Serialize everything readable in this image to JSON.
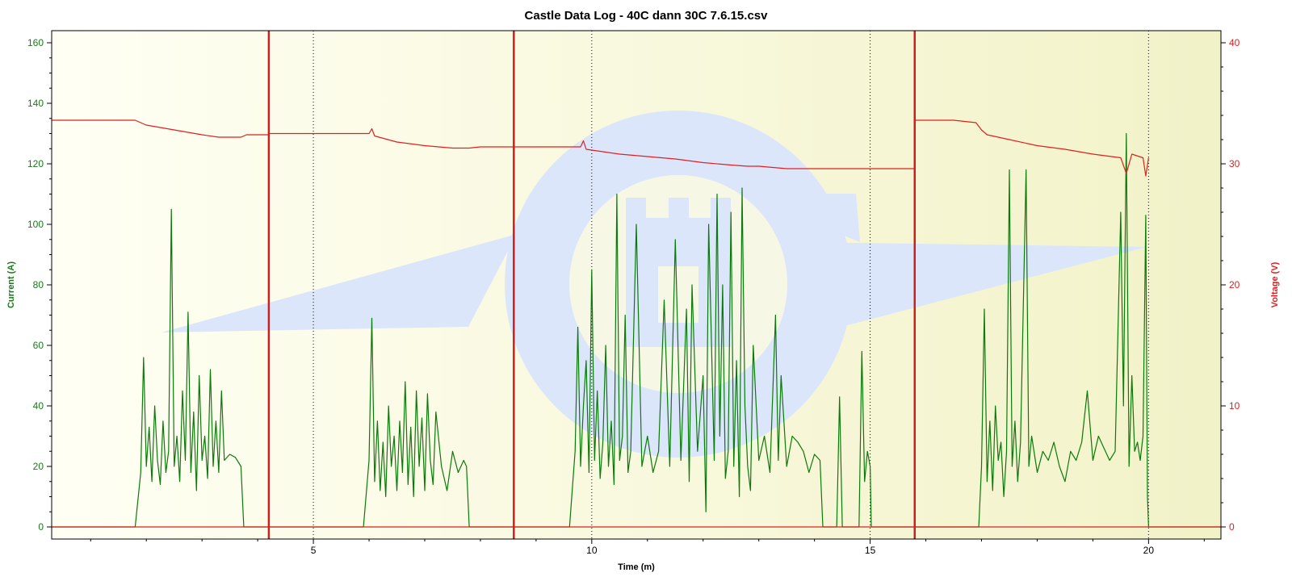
{
  "chart_data": {
    "type": "line",
    "title": "Castle Data Log - 40C dann 30C 7.6.15.csv",
    "xlabel": "Time (m)",
    "ylabel_left": "Current (A)",
    "ylabel_right": "Voltage (V)",
    "xlim": [
      0.3,
      21.3
    ],
    "ylim_left": [
      -4,
      164
    ],
    "ylim_right": [
      -1,
      41
    ],
    "x_ticks": [
      5,
      10,
      15,
      20
    ],
    "y_ticks_left": [
      0,
      20,
      40,
      60,
      80,
      100,
      120,
      140,
      160
    ],
    "y_ticks_right": [
      0,
      10,
      20,
      30,
      40
    ],
    "grid": "vertical dotted at major x ticks",
    "colors": {
      "current": "#0a7a0a",
      "voltage": "#e02020",
      "marker": "#cc2020",
      "background_left": "#fffff0",
      "background_right": "#f4f4c8",
      "watermark": "#dce6fa"
    },
    "markers_x": [
      4.2,
      8.6,
      15.8
    ],
    "series": [
      {
        "name": "Current (A)",
        "axis": "left",
        "color": "#0a7a0a",
        "points": [
          [
            0.3,
            0
          ],
          [
            1.8,
            0
          ],
          [
            1.9,
            18
          ],
          [
            1.95,
            56
          ],
          [
            2.0,
            20
          ],
          [
            2.05,
            33
          ],
          [
            2.1,
            15
          ],
          [
            2.15,
            40
          ],
          [
            2.2,
            22
          ],
          [
            2.25,
            14
          ],
          [
            2.3,
            35
          ],
          [
            2.35,
            18
          ],
          [
            2.4,
            25
          ],
          [
            2.45,
            105
          ],
          [
            2.5,
            20
          ],
          [
            2.55,
            30
          ],
          [
            2.6,
            15
          ],
          [
            2.65,
            45
          ],
          [
            2.7,
            22
          ],
          [
            2.75,
            71
          ],
          [
            2.8,
            18
          ],
          [
            2.85,
            38
          ],
          [
            2.9,
            12
          ],
          [
            2.95,
            50
          ],
          [
            3.0,
            22
          ],
          [
            3.05,
            30
          ],
          [
            3.1,
            16
          ],
          [
            3.15,
            52
          ],
          [
            3.2,
            20
          ],
          [
            3.25,
            35
          ],
          [
            3.3,
            18
          ],
          [
            3.35,
            45
          ],
          [
            3.4,
            22
          ],
          [
            3.5,
            24
          ],
          [
            3.6,
            23
          ],
          [
            3.7,
            20
          ],
          [
            3.75,
            0
          ],
          [
            5.9,
            0
          ],
          [
            6.0,
            22
          ],
          [
            6.05,
            69
          ],
          [
            6.1,
            15
          ],
          [
            6.15,
            35
          ],
          [
            6.2,
            12
          ],
          [
            6.25,
            28
          ],
          [
            6.3,
            10
          ],
          [
            6.35,
            40
          ],
          [
            6.4,
            20
          ],
          [
            6.45,
            30
          ],
          [
            6.5,
            12
          ],
          [
            6.55,
            35
          ],
          [
            6.6,
            18
          ],
          [
            6.65,
            48
          ],
          [
            6.7,
            14
          ],
          [
            6.75,
            33
          ],
          [
            6.8,
            10
          ],
          [
            6.85,
            45
          ],
          [
            6.9,
            20
          ],
          [
            6.95,
            36
          ],
          [
            7.0,
            12
          ],
          [
            7.05,
            44
          ],
          [
            7.1,
            22
          ],
          [
            7.15,
            14
          ],
          [
            7.2,
            38
          ],
          [
            7.3,
            20
          ],
          [
            7.4,
            12
          ],
          [
            7.5,
            25
          ],
          [
            7.6,
            18
          ],
          [
            7.7,
            22
          ],
          [
            7.75,
            20
          ],
          [
            7.8,
            0
          ],
          [
            9.6,
            0
          ],
          [
            9.7,
            25
          ],
          [
            9.75,
            66
          ],
          [
            9.8,
            20
          ],
          [
            9.85,
            40
          ],
          [
            9.9,
            55
          ],
          [
            9.95,
            18
          ],
          [
            10.0,
            85
          ],
          [
            10.05,
            22
          ],
          [
            10.1,
            45
          ],
          [
            10.15,
            16
          ],
          [
            10.2,
            28
          ],
          [
            10.25,
            60
          ],
          [
            10.3,
            20
          ],
          [
            10.35,
            35
          ],
          [
            10.4,
            14
          ],
          [
            10.45,
            110
          ],
          [
            10.5,
            22
          ],
          [
            10.55,
            30
          ],
          [
            10.6,
            70
          ],
          [
            10.65,
            18
          ],
          [
            10.7,
            25
          ],
          [
            10.8,
            100
          ],
          [
            10.9,
            20
          ],
          [
            11.0,
            30
          ],
          [
            11.1,
            18
          ],
          [
            11.2,
            25
          ],
          [
            11.3,
            75
          ],
          [
            11.4,
            20
          ],
          [
            11.5,
            95
          ],
          [
            11.6,
            22
          ],
          [
            11.7,
            72
          ],
          [
            11.75,
            15
          ],
          [
            11.8,
            80
          ],
          [
            11.9,
            25
          ],
          [
            12.0,
            50
          ],
          [
            12.05,
            5
          ],
          [
            12.1,
            100
          ],
          [
            12.2,
            22
          ],
          [
            12.25,
            110
          ],
          [
            12.3,
            30
          ],
          [
            12.35,
            80
          ],
          [
            12.4,
            16
          ],
          [
            12.45,
            25
          ],
          [
            12.5,
            104
          ],
          [
            12.55,
            20
          ],
          [
            12.6,
            55
          ],
          [
            12.65,
            10
          ],
          [
            12.7,
            112
          ],
          [
            12.75,
            40
          ],
          [
            12.8,
            20
          ],
          [
            12.85,
            12
          ],
          [
            12.9,
            60
          ],
          [
            13.0,
            22
          ],
          [
            13.1,
            30
          ],
          [
            13.2,
            18
          ],
          [
            13.3,
            70
          ],
          [
            13.35,
            22
          ],
          [
            13.4,
            50
          ],
          [
            13.5,
            20
          ],
          [
            13.6,
            30
          ],
          [
            13.7,
            28
          ],
          [
            13.8,
            25
          ],
          [
            13.9,
            18
          ],
          [
            14.0,
            24
          ],
          [
            14.1,
            22
          ],
          [
            14.15,
            0
          ],
          [
            14.4,
            0
          ],
          [
            14.45,
            43
          ],
          [
            14.5,
            0
          ],
          [
            14.8,
            0
          ],
          [
            14.85,
            58
          ],
          [
            14.9,
            15
          ],
          [
            14.95,
            25
          ],
          [
            15.0,
            20
          ],
          [
            15.02,
            0
          ],
          [
            16.95,
            0
          ],
          [
            17.0,
            20
          ],
          [
            17.05,
            72
          ],
          [
            17.1,
            15
          ],
          [
            17.15,
            35
          ],
          [
            17.2,
            12
          ],
          [
            17.25,
            40
          ],
          [
            17.3,
            22
          ],
          [
            17.35,
            28
          ],
          [
            17.4,
            10
          ],
          [
            17.45,
            25
          ],
          [
            17.5,
            118
          ],
          [
            17.55,
            20
          ],
          [
            17.6,
            35
          ],
          [
            17.65,
            15
          ],
          [
            17.7,
            28
          ],
          [
            17.8,
            118
          ],
          [
            17.85,
            20
          ],
          [
            17.9,
            30
          ],
          [
            18.0,
            18
          ],
          [
            18.1,
            25
          ],
          [
            18.2,
            22
          ],
          [
            18.3,
            28
          ],
          [
            18.4,
            20
          ],
          [
            18.5,
            15
          ],
          [
            18.6,
            25
          ],
          [
            18.7,
            22
          ],
          [
            18.8,
            28
          ],
          [
            18.9,
            45
          ],
          [
            19.0,
            22
          ],
          [
            19.1,
            30
          ],
          [
            19.2,
            26
          ],
          [
            19.3,
            22
          ],
          [
            19.4,
            25
          ],
          [
            19.5,
            104
          ],
          [
            19.55,
            40
          ],
          [
            19.6,
            130
          ],
          [
            19.65,
            20
          ],
          [
            19.7,
            50
          ],
          [
            19.75,
            25
          ],
          [
            19.8,
            28
          ],
          [
            19.85,
            22
          ],
          [
            19.9,
            30
          ],
          [
            19.95,
            103
          ],
          [
            19.98,
            10
          ],
          [
            20.0,
            0
          ],
          [
            21.3,
            0
          ]
        ]
      },
      {
        "name": "Voltage (V)",
        "axis": "right",
        "color": "#e02020",
        "points": [
          [
            0.3,
            33.6
          ],
          [
            1.8,
            33.6
          ],
          [
            2.0,
            33.2
          ],
          [
            2.5,
            32.8
          ],
          [
            3.0,
            32.4
          ],
          [
            3.3,
            32.2
          ],
          [
            3.7,
            32.2
          ],
          [
            3.8,
            32.4
          ],
          [
            4.2,
            32.4
          ],
          [
            4.2,
            32.5
          ],
          [
            5.5,
            32.5
          ],
          [
            6.0,
            32.5
          ],
          [
            6.05,
            32.9
          ],
          [
            6.1,
            32.3
          ],
          [
            6.5,
            31.8
          ],
          [
            7.0,
            31.5
          ],
          [
            7.5,
            31.3
          ],
          [
            7.8,
            31.3
          ],
          [
            8.0,
            31.4
          ],
          [
            8.6,
            31.4
          ],
          [
            9.5,
            31.4
          ],
          [
            9.8,
            31.4
          ],
          [
            9.85,
            31.9
          ],
          [
            9.9,
            31.2
          ],
          [
            10.5,
            30.8
          ],
          [
            11.0,
            30.6
          ],
          [
            11.5,
            30.4
          ],
          [
            12.0,
            30.1
          ],
          [
            12.5,
            29.9
          ],
          [
            12.8,
            29.8
          ],
          [
            13.0,
            29.8
          ],
          [
            13.5,
            29.6
          ],
          [
            14.0,
            29.6
          ],
          [
            14.5,
            29.6
          ],
          [
            15.0,
            29.6
          ],
          [
            15.8,
            29.6
          ],
          [
            15.8,
            33.6
          ],
          [
            16.5,
            33.6
          ],
          [
            16.9,
            33.4
          ],
          [
            17.0,
            32.8
          ],
          [
            17.1,
            32.4
          ],
          [
            17.5,
            32.0
          ],
          [
            18.0,
            31.5
          ],
          [
            18.5,
            31.2
          ],
          [
            19.0,
            30.8
          ],
          [
            19.5,
            30.5
          ],
          [
            19.6,
            29.2
          ],
          [
            19.7,
            30.8
          ],
          [
            19.9,
            30.5
          ],
          [
            19.95,
            29.0
          ],
          [
            20.0,
            30.5
          ]
        ]
      },
      {
        "name": "Voltage baseline",
        "axis": "right",
        "color": "#e02020",
        "points": [
          [
            0.3,
            0
          ],
          [
            21.3,
            0
          ]
        ]
      }
    ]
  }
}
